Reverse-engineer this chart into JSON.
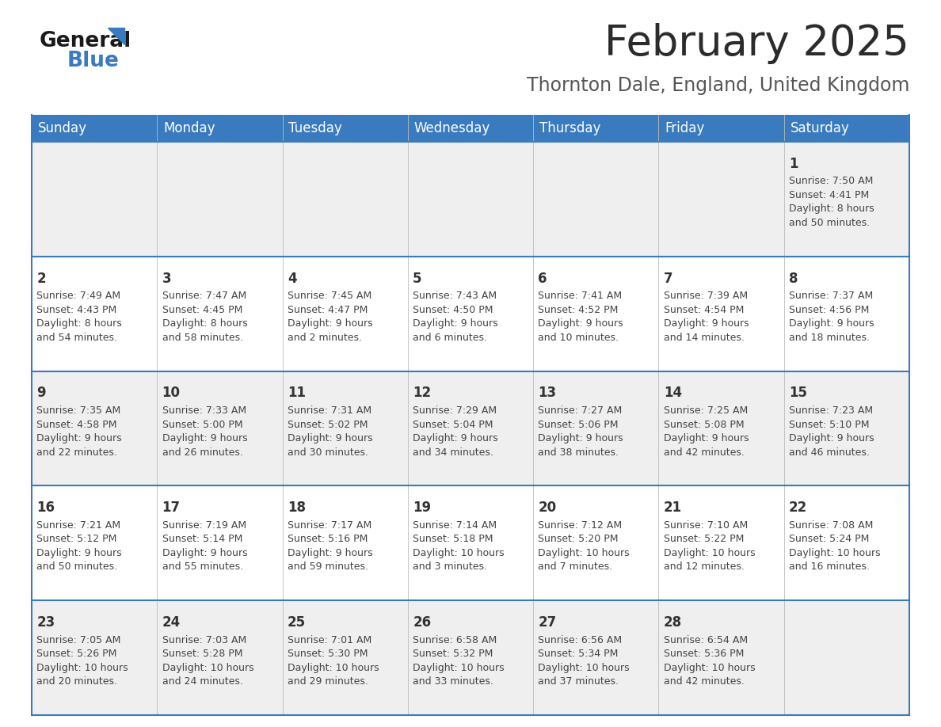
{
  "title": "February 2025",
  "subtitle": "Thornton Dale, England, United Kingdom",
  "header_color": "#3a7abf",
  "header_text_color": "#ffffff",
  "cell_bg_odd": "#efefef",
  "cell_bg_even": "#ffffff",
  "day_text_color": "#333333",
  "info_text_color": "#444444",
  "border_color": "#3a7abf",
  "weekdays": [
    "Sunday",
    "Monday",
    "Tuesday",
    "Wednesday",
    "Thursday",
    "Friday",
    "Saturday"
  ],
  "weeks": [
    [
      {
        "day": "",
        "info": ""
      },
      {
        "day": "",
        "info": ""
      },
      {
        "day": "",
        "info": ""
      },
      {
        "day": "",
        "info": ""
      },
      {
        "day": "",
        "info": ""
      },
      {
        "day": "",
        "info": ""
      },
      {
        "day": "1",
        "info": "Sunrise: 7:50 AM\nSunset: 4:41 PM\nDaylight: 8 hours\nand 50 minutes."
      }
    ],
    [
      {
        "day": "2",
        "info": "Sunrise: 7:49 AM\nSunset: 4:43 PM\nDaylight: 8 hours\nand 54 minutes."
      },
      {
        "day": "3",
        "info": "Sunrise: 7:47 AM\nSunset: 4:45 PM\nDaylight: 8 hours\nand 58 minutes."
      },
      {
        "day": "4",
        "info": "Sunrise: 7:45 AM\nSunset: 4:47 PM\nDaylight: 9 hours\nand 2 minutes."
      },
      {
        "day": "5",
        "info": "Sunrise: 7:43 AM\nSunset: 4:50 PM\nDaylight: 9 hours\nand 6 minutes."
      },
      {
        "day": "6",
        "info": "Sunrise: 7:41 AM\nSunset: 4:52 PM\nDaylight: 9 hours\nand 10 minutes."
      },
      {
        "day": "7",
        "info": "Sunrise: 7:39 AM\nSunset: 4:54 PM\nDaylight: 9 hours\nand 14 minutes."
      },
      {
        "day": "8",
        "info": "Sunrise: 7:37 AM\nSunset: 4:56 PM\nDaylight: 9 hours\nand 18 minutes."
      }
    ],
    [
      {
        "day": "9",
        "info": "Sunrise: 7:35 AM\nSunset: 4:58 PM\nDaylight: 9 hours\nand 22 minutes."
      },
      {
        "day": "10",
        "info": "Sunrise: 7:33 AM\nSunset: 5:00 PM\nDaylight: 9 hours\nand 26 minutes."
      },
      {
        "day": "11",
        "info": "Sunrise: 7:31 AM\nSunset: 5:02 PM\nDaylight: 9 hours\nand 30 minutes."
      },
      {
        "day": "12",
        "info": "Sunrise: 7:29 AM\nSunset: 5:04 PM\nDaylight: 9 hours\nand 34 minutes."
      },
      {
        "day": "13",
        "info": "Sunrise: 7:27 AM\nSunset: 5:06 PM\nDaylight: 9 hours\nand 38 minutes."
      },
      {
        "day": "14",
        "info": "Sunrise: 7:25 AM\nSunset: 5:08 PM\nDaylight: 9 hours\nand 42 minutes."
      },
      {
        "day": "15",
        "info": "Sunrise: 7:23 AM\nSunset: 5:10 PM\nDaylight: 9 hours\nand 46 minutes."
      }
    ],
    [
      {
        "day": "16",
        "info": "Sunrise: 7:21 AM\nSunset: 5:12 PM\nDaylight: 9 hours\nand 50 minutes."
      },
      {
        "day": "17",
        "info": "Sunrise: 7:19 AM\nSunset: 5:14 PM\nDaylight: 9 hours\nand 55 minutes."
      },
      {
        "day": "18",
        "info": "Sunrise: 7:17 AM\nSunset: 5:16 PM\nDaylight: 9 hours\nand 59 minutes."
      },
      {
        "day": "19",
        "info": "Sunrise: 7:14 AM\nSunset: 5:18 PM\nDaylight: 10 hours\nand 3 minutes."
      },
      {
        "day": "20",
        "info": "Sunrise: 7:12 AM\nSunset: 5:20 PM\nDaylight: 10 hours\nand 7 minutes."
      },
      {
        "day": "21",
        "info": "Sunrise: 7:10 AM\nSunset: 5:22 PM\nDaylight: 10 hours\nand 12 minutes."
      },
      {
        "day": "22",
        "info": "Sunrise: 7:08 AM\nSunset: 5:24 PM\nDaylight: 10 hours\nand 16 minutes."
      }
    ],
    [
      {
        "day": "23",
        "info": "Sunrise: 7:05 AM\nSunset: 5:26 PM\nDaylight: 10 hours\nand 20 minutes."
      },
      {
        "day": "24",
        "info": "Sunrise: 7:03 AM\nSunset: 5:28 PM\nDaylight: 10 hours\nand 24 minutes."
      },
      {
        "day": "25",
        "info": "Sunrise: 7:01 AM\nSunset: 5:30 PM\nDaylight: 10 hours\nand 29 minutes."
      },
      {
        "day": "26",
        "info": "Sunrise: 6:58 AM\nSunset: 5:32 PM\nDaylight: 10 hours\nand 33 minutes."
      },
      {
        "day": "27",
        "info": "Sunrise: 6:56 AM\nSunset: 5:34 PM\nDaylight: 10 hours\nand 37 minutes."
      },
      {
        "day": "28",
        "info": "Sunrise: 6:54 AM\nSunset: 5:36 PM\nDaylight: 10 hours\nand 42 minutes."
      },
      {
        "day": "",
        "info": ""
      }
    ]
  ],
  "title_fontsize": 38,
  "subtitle_fontsize": 17,
  "header_fontsize": 12,
  "day_num_fontsize": 12,
  "info_fontsize": 9
}
